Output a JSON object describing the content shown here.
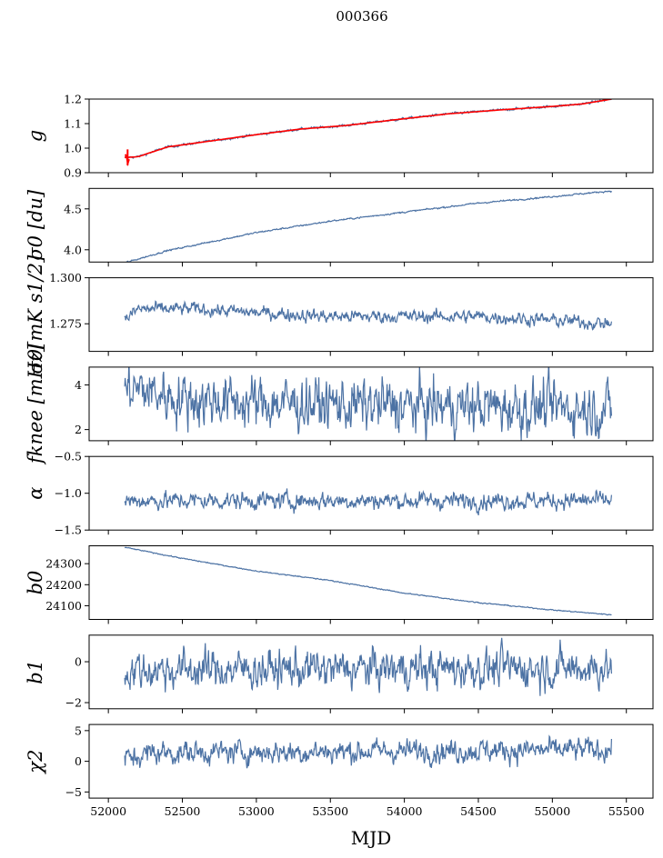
{
  "chart_data": {
    "suptitle": "000366",
    "type": "line",
    "xlabel": "MJD",
    "xlim": [
      51870,
      55680
    ],
    "xticks": [
      52000,
      52500,
      53000,
      53500,
      54000,
      54500,
      55000,
      55500
    ],
    "line_color": "#4c72a4",
    "model_color": "#ff0000",
    "series_domain": [
      52110,
      55400
    ],
    "panels": [
      {
        "key": "g",
        "ylabel": "g",
        "ylim": [
          0.9,
          1.2
        ],
        "yticks": [
          0.9,
          1.0,
          1.1,
          1.2
        ],
        "ytick_labels": [
          "0.9",
          "1.0",
          "1.1",
          "1.2"
        ],
        "trend": [
          [
            52110,
            0.962
          ],
          [
            52200,
            0.965
          ],
          [
            52400,
            1.005
          ],
          [
            52700,
            1.03
          ],
          [
            53000,
            1.055
          ],
          [
            53300,
            1.078
          ],
          [
            53600,
            1.092
          ],
          [
            54000,
            1.12
          ],
          [
            54300,
            1.14
          ],
          [
            54700,
            1.158
          ],
          [
            55000,
            1.17
          ],
          [
            55200,
            1.18
          ],
          [
            55400,
            1.2
          ]
        ],
        "noise": 0.002,
        "has_model_overlay": true,
        "model_error_start": [
          [
            52115,
            0.975
          ],
          [
            52125,
            0.96
          ],
          [
            52132,
            0.94
          ],
          [
            52140,
            0.955
          ]
        ]
      },
      {
        "key": "sigma0_du",
        "ylabel": "σ0 [du]",
        "ylim": [
          3.85,
          4.75
        ],
        "yticks": [
          4.0,
          4.5
        ],
        "ytick_labels": [
          "4.0",
          "4.5"
        ],
        "trend": [
          [
            52110,
            3.84
          ],
          [
            52400,
            3.99
          ],
          [
            53000,
            4.21
          ],
          [
            53500,
            4.35
          ],
          [
            54000,
            4.46
          ],
          [
            54500,
            4.57
          ],
          [
            55000,
            4.65
          ],
          [
            55400,
            4.72
          ]
        ],
        "noise": 0.004
      },
      {
        "key": "sigma0_mK",
        "ylabel": "σ0[mK s1/2]",
        "ylim": [
          1.26,
          1.3
        ],
        "yticks": [
          1.275,
          1.3
        ],
        "ytick_labels": [
          "1.275",
          "1.300"
        ],
        "trend": [
          [
            52110,
            1.277
          ],
          [
            52200,
            1.283
          ],
          [
            52600,
            1.283
          ],
          [
            53000,
            1.281
          ],
          [
            53500,
            1.279
          ],
          [
            54000,
            1.279
          ],
          [
            54500,
            1.279
          ],
          [
            55000,
            1.277
          ],
          [
            55400,
            1.275
          ]
        ],
        "noise": 0.0015
      },
      {
        "key": "fknee",
        "ylabel": "fknee [mHz]",
        "ylim": [
          1.5,
          4.8
        ],
        "yticks": [
          2,
          4
        ],
        "ytick_labels": [
          "2",
          "4"
        ],
        "trend": [
          [
            52110,
            3.9
          ],
          [
            52500,
            3.4
          ],
          [
            53000,
            3.2
          ],
          [
            54000,
            3.05
          ],
          [
            55000,
            3.0
          ],
          [
            55400,
            2.9
          ]
        ],
        "noise": 0.5
      },
      {
        "key": "alpha",
        "ylabel": "α",
        "ylim": [
          -1.5,
          -0.5
        ],
        "yticks": [
          -1.5,
          -1.0,
          -0.5
        ],
        "ytick_labels": [
          "−1.5",
          "−1.0",
          "−0.5"
        ],
        "trend": [
          [
            52110,
            -1.1
          ],
          [
            55400,
            -1.1
          ]
        ],
        "noise": 0.05
      },
      {
        "key": "b0",
        "ylabel": "b0",
        "ylim": [
          24035,
          24385
        ],
        "yticks": [
          24100,
          24200,
          24300
        ],
        "ytick_labels": [
          "24100",
          "24200",
          "24300"
        ],
        "trend": [
          [
            52110,
            24378
          ],
          [
            52500,
            24325
          ],
          [
            53000,
            24265
          ],
          [
            53500,
            24220
          ],
          [
            54000,
            24160
          ],
          [
            54500,
            24115
          ],
          [
            55000,
            24080
          ],
          [
            55400,
            24057
          ]
        ],
        "noise": 1
      },
      {
        "key": "b1",
        "ylabel": "b1",
        "ylim": [
          -2.3,
          1.3
        ],
        "yticks": [
          -2,
          0
        ],
        "ytick_labels": [
          "−2",
          "0"
        ],
        "trend": [
          [
            52110,
            -0.4
          ],
          [
            55400,
            -0.3
          ]
        ],
        "noise": 0.4
      },
      {
        "key": "chi2",
        "ylabel": "χ2",
        "ylim": [
          -6,
          6
        ],
        "yticks": [
          -5,
          0,
          5
        ],
        "ytick_labels": [
          "−5",
          "0",
          "5"
        ],
        "trend": [
          [
            52110,
            0.3
          ],
          [
            52300,
            1.4
          ],
          [
            55400,
            1.9
          ]
        ],
        "noise": 0.8
      }
    ]
  }
}
